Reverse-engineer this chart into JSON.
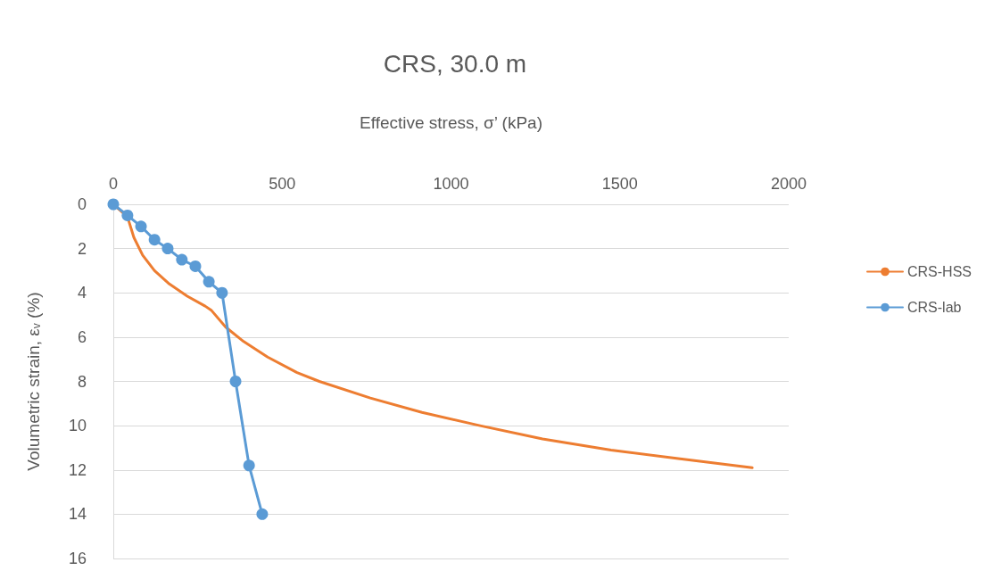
{
  "chart_data": {
    "type": "line",
    "title": "CRS, 30.0 m",
    "xlabel": "Effective stress, σ’ (kPa)",
    "ylabel": "Volumetric strain, ε$_{v}$ (%)",
    "xlim": [
      0,
      2000
    ],
    "xticks": [
      0,
      500,
      1000,
      1500,
      2000
    ],
    "ylim": [
      16,
      0
    ],
    "yticks": [
      0,
      2,
      4,
      6,
      8,
      10,
      12,
      14,
      16
    ],
    "grid": "y",
    "legend": "right",
    "series": [
      {
        "name": "CRS-HSS",
        "color": "#ed7d31",
        "marker": "none",
        "x": [
          0,
          42,
          61,
          87,
          122,
          166,
          219,
          272,
          291,
          333,
          386,
          457,
          544,
          610,
          761,
          914,
          1086,
          1271,
          1474,
          1678,
          1892
        ],
        "values": [
          0,
          0.57,
          1.5,
          2.3,
          3.0,
          3.6,
          4.15,
          4.6,
          4.8,
          5.55,
          6.2,
          6.9,
          7.6,
          8.0,
          8.75,
          9.4,
          10.0,
          10.6,
          11.1,
          11.5,
          11.9
        ]
      },
      {
        "name": "CRS-lab",
        "color": "#5b9bd5",
        "marker": "circle",
        "x": [
          0,
          42,
          82,
          122,
          161,
          203,
          243,
          283,
          322,
          362,
          402,
          441
        ],
        "values": [
          0,
          0.5,
          1.0,
          1.6,
          2.0,
          2.5,
          2.8,
          3.5,
          4.0,
          8.0,
          11.8,
          14.0
        ]
      }
    ]
  }
}
